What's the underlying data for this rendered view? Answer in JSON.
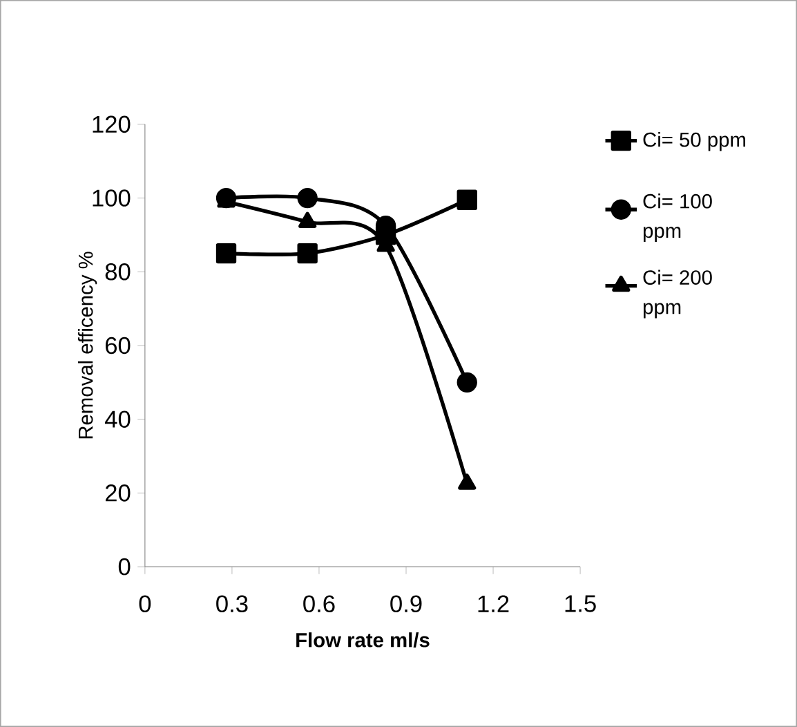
{
  "chart_data": {
    "type": "line",
    "xlabel": "Flow rate ml/s",
    "ylabel": "Removal efficency %",
    "xlim": [
      0,
      1.5
    ],
    "xticks": [
      0,
      0.3,
      0.6,
      0.9,
      1.2,
      1.5
    ],
    "ylim": [
      0,
      120
    ],
    "yticks": [
      0,
      20,
      40,
      60,
      80,
      100,
      120
    ],
    "grid": false,
    "legend": "right",
    "series": [
      {
        "name": "Ci= 50 ppm",
        "color": "#000000",
        "marker": "square",
        "x": [
          0.28,
          0.56,
          0.83,
          1.11
        ],
        "values": [
          85,
          85,
          90,
          99.5
        ]
      },
      {
        "name": "Ci= 100 ppm",
        "color": "#000000",
        "marker": "circle",
        "x": [
          0.28,
          0.56,
          0.83,
          1.11
        ],
        "values": [
          100,
          100,
          92.5,
          50
        ]
      },
      {
        "name": "Ci= 200 ppm",
        "color": "#000000",
        "marker": "triangle",
        "x": [
          0.28,
          0.56,
          0.83,
          1.11
        ],
        "values": [
          99,
          93.5,
          87,
          22.5
        ]
      }
    ]
  }
}
